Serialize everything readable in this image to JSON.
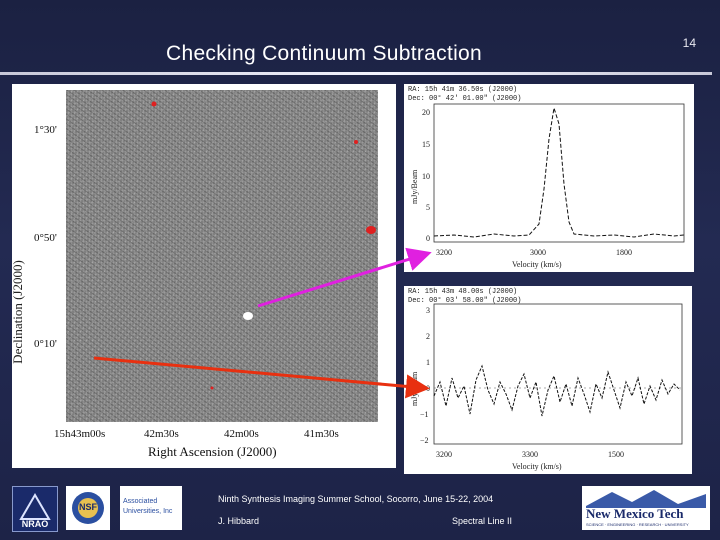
{
  "slide": {
    "page_number": "14",
    "title": "Checking Continuum Subtraction"
  },
  "sky_map": {
    "y_axis_label": "Declination (J2000)",
    "y_ticks": [
      "1°30'",
      "0°50'",
      "0°10'"
    ],
    "x_axis_label": "Right Ascension (J2000)",
    "x_ticks": [
      "15h43m00s",
      "42m30s",
      "42m00s",
      "41m30s"
    ]
  },
  "spectrum_top": {
    "header_lines": [
      "RA: 15h 41m 36.50s (J2000)",
      "Dec: 00° 42' 01.00\" (J2000)"
    ],
    "y_axis_label": "mJy/Beam",
    "y_ticks": [
      "20",
      "15",
      "10",
      "5",
      "0"
    ],
    "x_ticks": [
      "3200",
      "3000",
      "1800"
    ],
    "x_axis_label": "Velocity (km/s)"
  },
  "spectrum_bottom": {
    "header_lines": [
      "RA: 15h 43m 48.00s (J2000)",
      "Dec: 00° 03' 58.00\" (J2000)"
    ],
    "y_axis_label": "mJy/Beam",
    "y_ticks": [
      "3",
      "2",
      "1",
      "0",
      "−1",
      "−2"
    ],
    "x_ticks": [
      "3200",
      "3300",
      "1500"
    ],
    "x_axis_label": "Velocity (km/s)"
  },
  "footer": {
    "school_line": "Ninth Synthesis Imaging Summer School, Socorro, June 15-22, 2004",
    "author": "J. Hibbard",
    "topic": "Spectral Line II",
    "logo_nrao": "NRAO",
    "logo_nsf": "NSF",
    "logo_aui_line1": "Associated",
    "logo_aui_line2": "Universities, Inc",
    "logo_nmt": "New Mexico Tech",
    "logo_nmt_sub": "SCIENCE · ENGINEERING · RESEARCH · UNIVERSITY"
  },
  "colors": {
    "background": "#1d2347",
    "arrow_magenta": "#e020e0",
    "arrow_red": "#e83010"
  }
}
